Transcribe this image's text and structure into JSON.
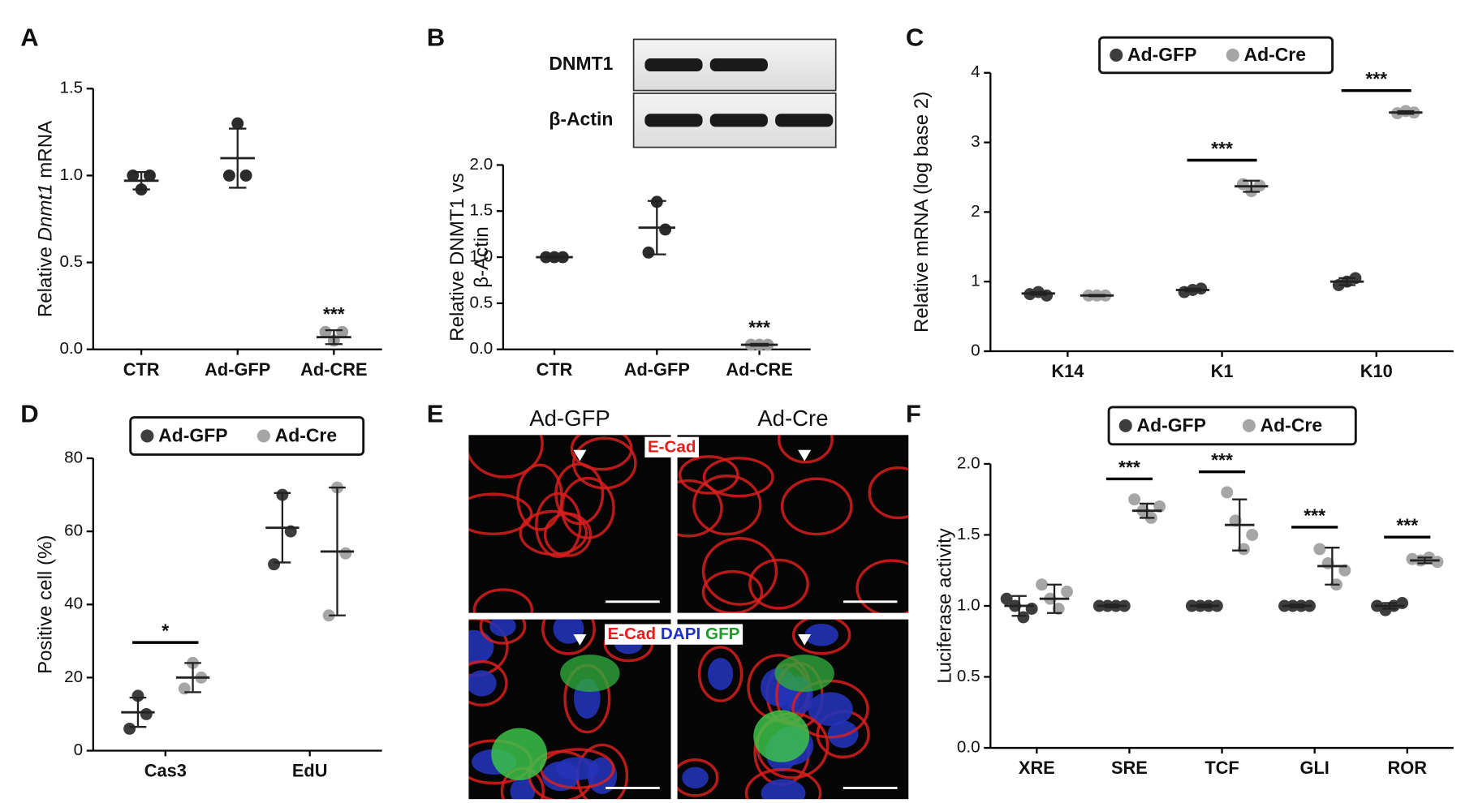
{
  "chart_data": [
    {
      "type": "dot",
      "panel": "A",
      "ylabel_parts": [
        "Relative ",
        "Dnmt1",
        " mRNA"
      ],
      "ylabel_italic": [
        false,
        true,
        false
      ],
      "categories": [
        "CTR",
        "Ad-GFP",
        "Ad-CRE"
      ],
      "ylim": [
        0,
        1.5
      ],
      "yticks": [
        {
          "value": 0,
          "label": "0.0"
        },
        0.5,
        {
          "value": 1,
          "label": "1.0"
        },
        1.5
      ],
      "series": [
        {
          "colors": [
            "#2b2b2b",
            "#2b2b2b",
            "#9e9e9e"
          ],
          "points": [
            [
              1.0,
              0.92,
              1.0
            ],
            [
              1.0,
              1.3,
              1.0
            ],
            [
              0.1,
              0.05,
              0.1
            ]
          ],
          "means": [
            0.97,
            1.1,
            0.07
          ],
          "sd": [
            0.05,
            0.17,
            0.04
          ],
          "significance": [
            null,
            null,
            "***"
          ]
        }
      ]
    },
    {
      "type": "dot",
      "panel": "B",
      "ylabel_lines": [
        "Relative DNMT1 vs",
        "β-Actin"
      ],
      "blot_labels": [
        "DNMT1",
        "β-Actin"
      ],
      "categories": [
        "CTR",
        "Ad-GFP",
        "Ad-CRE"
      ],
      "ylim": [
        0,
        2
      ],
      "yticks": [
        {
          "value": 0,
          "label": "0.0"
        },
        0.5,
        {
          "value": 1,
          "label": "1.0"
        },
        1.5,
        {
          "value": 2,
          "label": "2.0"
        }
      ],
      "series": [
        {
          "colors": [
            "#2b2b2b",
            "#2b2b2b",
            "#9e9e9e"
          ],
          "points": [
            [
              1.0,
              1.0,
              1.0
            ],
            [
              1.05,
              1.6,
              1.3
            ],
            [
              0.05,
              0.05,
              0.05
            ]
          ],
          "means": [
            1.0,
            1.32,
            0.05
          ],
          "sd": [
            0.01,
            0.29,
            0.01
          ],
          "significance": [
            null,
            null,
            "***"
          ]
        }
      ]
    },
    {
      "type": "dot",
      "panel": "C",
      "ylabel": "Relative mRNA (log base 2)",
      "categories": [
        "K14",
        "K1",
        "K10"
      ],
      "ylim": [
        0,
        4
      ],
      "yticks": [
        0,
        1,
        2,
        3,
        4
      ],
      "series": [
        {
          "name": "Ad-GFP",
          "color": "#3d3d3d",
          "points": [
            [
              0.82,
              0.85,
              0.8
            ],
            [
              0.85,
              0.88,
              0.9
            ],
            [
              0.95,
              1.0,
              1.05
            ]
          ],
          "means": [
            0.83,
            0.88,
            1.0
          ],
          "sd": [
            0.02,
            0.02,
            0.05
          ]
        },
        {
          "name": "Ad-Cre",
          "color": "#a6a6a6",
          "points": [
            [
              0.8,
              0.8,
              0.8
            ],
            [
              2.4,
              2.3,
              2.38
            ],
            [
              3.42,
              3.45,
              3.43
            ]
          ],
          "means": [
            0.8,
            2.37,
            3.43
          ],
          "sd": [
            0.01,
            0.08,
            0.02
          ]
        }
      ],
      "significance": [
        null,
        "***",
        "***"
      ]
    },
    {
      "type": "dot",
      "panel": "D",
      "ylabel": "Positive cell (%)",
      "categories": [
        "Cas3",
        "EdU"
      ],
      "ylim": [
        0,
        80
      ],
      "yticks": [
        0,
        20,
        40,
        60,
        80
      ],
      "series": [
        {
          "name": "Ad-GFP",
          "color": "#3d3d3d",
          "points": [
            [
              6,
              15,
              10
            ],
            [
              51,
              70,
              60
            ]
          ],
          "means": [
            10.5,
            61
          ],
          "sd": [
            4,
            9.5
          ]
        },
        {
          "name": "Ad-Cre",
          "color": "#a6a6a6",
          "points": [
            [
              17,
              24,
              20
            ],
            [
              37,
              72,
              54
            ]
          ],
          "means": [
            20,
            54.5
          ],
          "sd": [
            4,
            17.5
          ]
        }
      ],
      "significance": [
        "*",
        null
      ]
    },
    {
      "type": "image-grid",
      "panel": "E",
      "columns": [
        "Ad-GFP",
        "Ad-Cre"
      ],
      "stains": [
        [
          {
            "text": "E-Cad",
            "color": "#e0201c"
          }
        ],
        [
          {
            "text": "E-Cad",
            "color": "#e0201c"
          },
          {
            "text": "DAPI",
            "color": "#1f2fd0"
          },
          {
            "text": "GFP",
            "color": "#1c9a2a"
          }
        ]
      ]
    },
    {
      "type": "dot",
      "panel": "F",
      "ylabel": "Luciferase activity",
      "categories": [
        "XRE",
        "SRE",
        "TCF",
        "GLI",
        "ROR"
      ],
      "ylim": [
        0,
        2
      ],
      "yticks": [
        {
          "value": 0,
          "label": "0.0"
        },
        0.5,
        {
          "value": 1,
          "label": "1.0"
        },
        1.5,
        {
          "value": 2,
          "label": "2.0"
        }
      ],
      "series": [
        {
          "name": "Ad-GFP",
          "color": "#3d3d3d",
          "points": [
            [
              1.05,
              1.0,
              0.92,
              0.98
            ],
            [
              1,
              1,
              1,
              1
            ],
            [
              1,
              1,
              1,
              1
            ],
            [
              1,
              1,
              1,
              1
            ],
            [
              1.0,
              0.97,
              1.0,
              1.02
            ]
          ],
          "means": [
            1.0,
            1.0,
            1.0,
            1.0,
            1.0
          ],
          "sd": [
            0.07,
            0.01,
            0.01,
            0.01,
            0.02
          ]
        },
        {
          "name": "Ad-Cre",
          "color": "#a6a6a6",
          "points": [
            [
              1.15,
              1.05,
              0.98,
              1.1
            ],
            [
              1.75,
              1.67,
              1.62,
              1.7
            ],
            [
              1.8,
              1.6,
              1.4,
              1.5
            ],
            [
              1.4,
              1.3,
              1.15,
              1.25
            ],
            [
              1.33,
              1.32,
              1.34,
              1.31
            ]
          ],
          "means": [
            1.05,
            1.67,
            1.57,
            1.28,
            1.32
          ],
          "sd": [
            0.1,
            0.05,
            0.18,
            0.13,
            0.02
          ]
        }
      ],
      "significance": [
        null,
        "***",
        "***",
        "***",
        "***"
      ]
    }
  ]
}
